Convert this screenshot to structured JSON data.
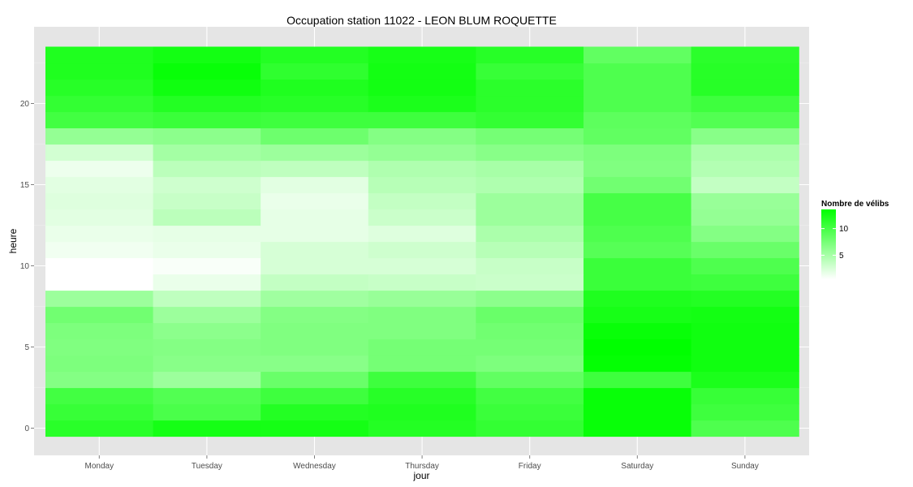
{
  "chart_data": {
    "type": "heatmap",
    "title": "Occupation station 11022 - LEON BLUM ROQUETTE",
    "xlabel": "jour",
    "ylabel": "heure",
    "x_categories": [
      "Monday",
      "Tuesday",
      "Wednesday",
      "Thursday",
      "Friday",
      "Saturday",
      "Sunday"
    ],
    "y_values": [
      0,
      1,
      2,
      3,
      4,
      5,
      6,
      7,
      8,
      9,
      10,
      11,
      12,
      13,
      14,
      15,
      16,
      17,
      18,
      19,
      20,
      21,
      22,
      23
    ],
    "y_ticks": [
      0,
      5,
      10,
      15,
      20
    ],
    "ylim": [
      -0.5,
      23.5
    ],
    "values": [
      [
        11.5,
        12.5,
        12.5,
        11.8,
        11.0,
        13.2,
        9.6
      ],
      [
        10.8,
        9.8,
        11.8,
        12.0,
        10.6,
        13.2,
        10.4
      ],
      [
        10.2,
        9.4,
        10.4,
        11.6,
        10.2,
        13.2,
        10.8
      ],
      [
        6.8,
        5.6,
        8.2,
        10.4,
        8.6,
        10.4,
        12.2
      ],
      [
        7.2,
        6.6,
        6.6,
        7.6,
        7.2,
        13.4,
        12.8
      ],
      [
        7.0,
        6.8,
        7.0,
        7.6,
        7.6,
        13.6,
        12.8
      ],
      [
        7.2,
        6.4,
        7.0,
        7.0,
        7.8,
        13.2,
        12.8
      ],
      [
        7.8,
        5.6,
        6.8,
        7.0,
        8.2,
        12.4,
        12.6
      ],
      [
        5.6,
        3.8,
        5.4,
        5.8,
        6.4,
        12.0,
        11.8
      ],
      [
        0.5,
        1.6,
        3.6,
        3.4,
        3.2,
        10.6,
        10.4
      ],
      [
        0.5,
        0.8,
        2.6,
        2.6,
        3.4,
        10.6,
        9.6
      ],
      [
        1.2,
        1.6,
        2.6,
        3.0,
        4.2,
        9.2,
        8.2
      ],
      [
        1.6,
        1.8,
        1.8,
        2.2,
        4.8,
        9.6,
        6.8
      ],
      [
        2.0,
        4.0,
        1.8,
        3.2,
        5.6,
        10.0,
        6.0
      ],
      [
        2.2,
        3.4,
        1.6,
        3.6,
        5.6,
        10.0,
        5.8
      ],
      [
        2.0,
        3.0,
        2.0,
        4.2,
        4.6,
        7.8,
        3.6
      ],
      [
        1.4,
        4.0,
        3.8,
        4.6,
        5.0,
        7.0,
        4.4
      ],
      [
        2.8,
        5.2,
        5.6,
        6.0,
        6.6,
        7.2,
        4.8
      ],
      [
        6.0,
        6.4,
        8.0,
        6.8,
        7.6,
        8.6,
        6.6
      ],
      [
        10.2,
        10.6,
        10.4,
        10.4,
        11.0,
        8.8,
        9.4
      ],
      [
        11.0,
        11.8,
        11.6,
        12.2,
        11.4,
        9.6,
        10.4
      ],
      [
        11.6,
        12.8,
        12.0,
        12.6,
        11.4,
        9.6,
        11.6
      ],
      [
        12.0,
        13.2,
        11.2,
        12.6,
        10.8,
        9.6,
        11.6
      ],
      [
        12.0,
        12.6,
        11.8,
        12.4,
        11.6,
        8.6,
        11.4
      ]
    ],
    "colorbar": {
      "title": "Nombre de vélibs",
      "min": 0.5,
      "max": 13.6,
      "ticks": [
        5,
        10
      ],
      "low_color": "#ffffff",
      "high_color": "#00ff00"
    },
    "colors": {
      "panel_background": "#e5e5e5",
      "grid_major": "#ffffff",
      "grid_minor": "#f2f2f2"
    },
    "grid": true,
    "legend_position": "right"
  }
}
